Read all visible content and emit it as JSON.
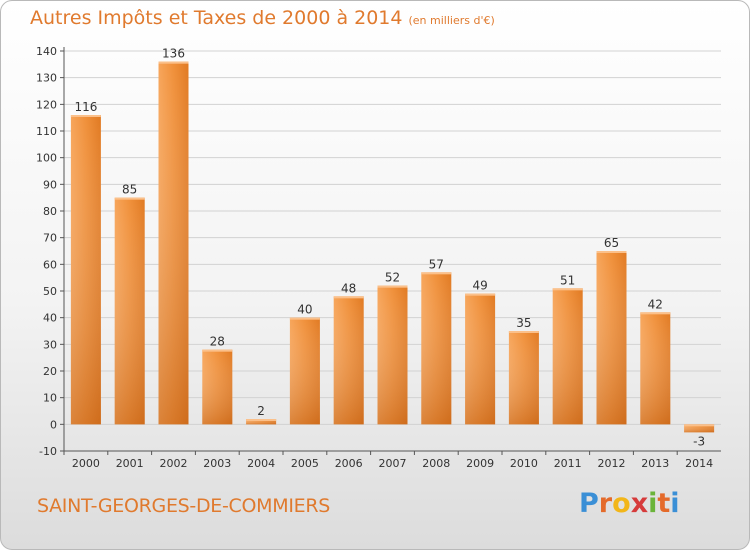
{
  "chart_data": {
    "type": "bar",
    "title": "Autres Impôts et Taxes de 2000 à 2014",
    "subtitle": "(en milliers d'€)",
    "categories": [
      "2000",
      "2001",
      "2002",
      "2003",
      "2004",
      "2005",
      "2006",
      "2007",
      "2008",
      "2009",
      "2010",
      "2011",
      "2012",
      "2013",
      "2014"
    ],
    "values": [
      116,
      85,
      136,
      28,
      2,
      40,
      48,
      52,
      57,
      49,
      35,
      51,
      65,
      42,
      -3
    ],
    "ylim": [
      -10,
      140
    ],
    "yticks": [
      -10,
      0,
      10,
      20,
      30,
      40,
      50,
      60,
      70,
      80,
      90,
      100,
      110,
      120,
      130,
      140
    ],
    "grid": true,
    "bar_color": "#f0903a",
    "bar_dark": "#cc6617"
  },
  "footer": {
    "commune": "SAINT-GEORGES-DE-COMMIERS",
    "logo": "Proxiti"
  }
}
